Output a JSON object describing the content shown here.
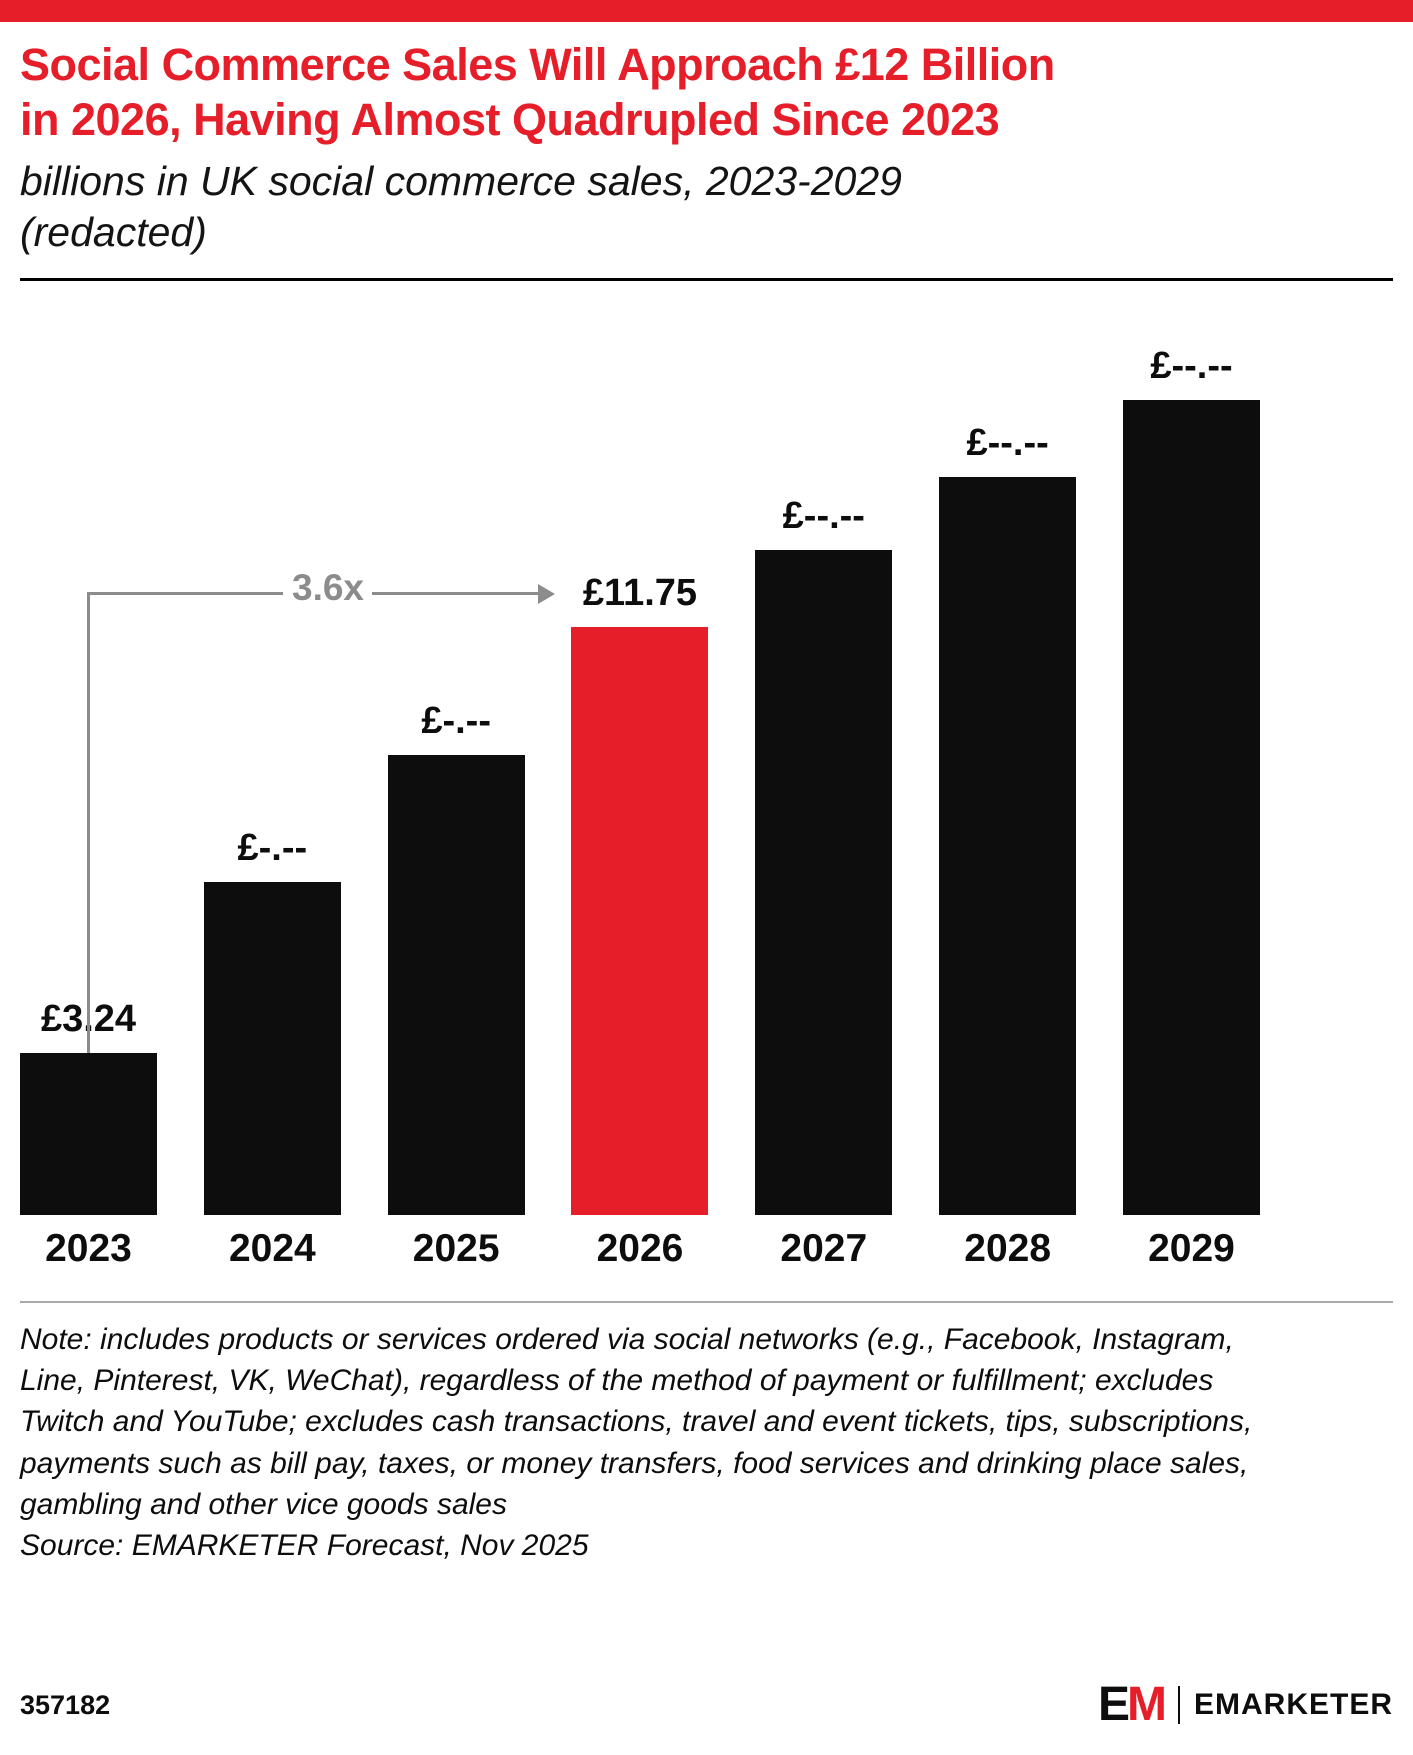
{
  "colors": {
    "accent": "#e51e29",
    "bar_black": "#0d0d0d",
    "annotation_gray": "#8c8c8c",
    "rule_dark": "#000000",
    "rule_light": "#aaaaaa"
  },
  "header": {
    "title_lines": [
      "Social Commerce Sales Will Approach £12 Billion",
      "in 2026, Having Almost Quadrupled Since 2023"
    ],
    "subtitle_lines": [
      "billions in UK social commerce sales, 2023-2029",
      "(redacted)"
    ]
  },
  "chart_data": {
    "type": "bar",
    "title": "Social Commerce Sales Will Approach £12 Billion in 2026, Having Almost Quadrupled Since 2023",
    "subtitle": "billions in UK social commerce sales, 2023-2029 (redacted)",
    "unit": "£ billions",
    "categories": [
      "2023",
      "2024",
      "2025",
      "2026",
      "2027",
      "2028",
      "2029"
    ],
    "values": [
      3.24,
      6.65,
      9.2,
      11.75,
      13.3,
      14.75,
      16.3
    ],
    "value_labels": [
      "£3.24",
      "£-.--",
      "£-.--",
      "£11.75",
      "£--.--",
      "£--.--",
      "£--.--"
    ],
    "redacted": [
      false,
      true,
      true,
      false,
      true,
      true,
      true
    ],
    "bar_colors": [
      "#0d0d0d",
      "#0d0d0d",
      "#0d0d0d",
      "#e51e29",
      "#0d0d0d",
      "#0d0d0d",
      "#0d0d0d"
    ],
    "highlight_index": 3,
    "annotation": {
      "label": "3.6x",
      "from_category": "2023",
      "to_category": "2026",
      "to_value_label": "£11.75"
    },
    "ylim": [
      0,
      18
    ],
    "grid": false,
    "legend": false
  },
  "note": {
    "text": "Note: includes products or services ordered via social networks (e.g., Facebook, Instagram, Line, Pinterest, VK, WeChat), regardless of the method of payment or fulfillment; excludes Twitch and YouTube; excludes cash transactions, travel and event tickets, tips, subscriptions, payments such as bill pay, taxes, or money transfers, food services and drinking place sales, gambling and other vice goods sales",
    "source": "Source: EMARKETER Forecast, Nov 2025"
  },
  "footer": {
    "chart_id": "357182",
    "logo_e": "E",
    "logo_m": "M",
    "brand": "EMARKETER"
  }
}
